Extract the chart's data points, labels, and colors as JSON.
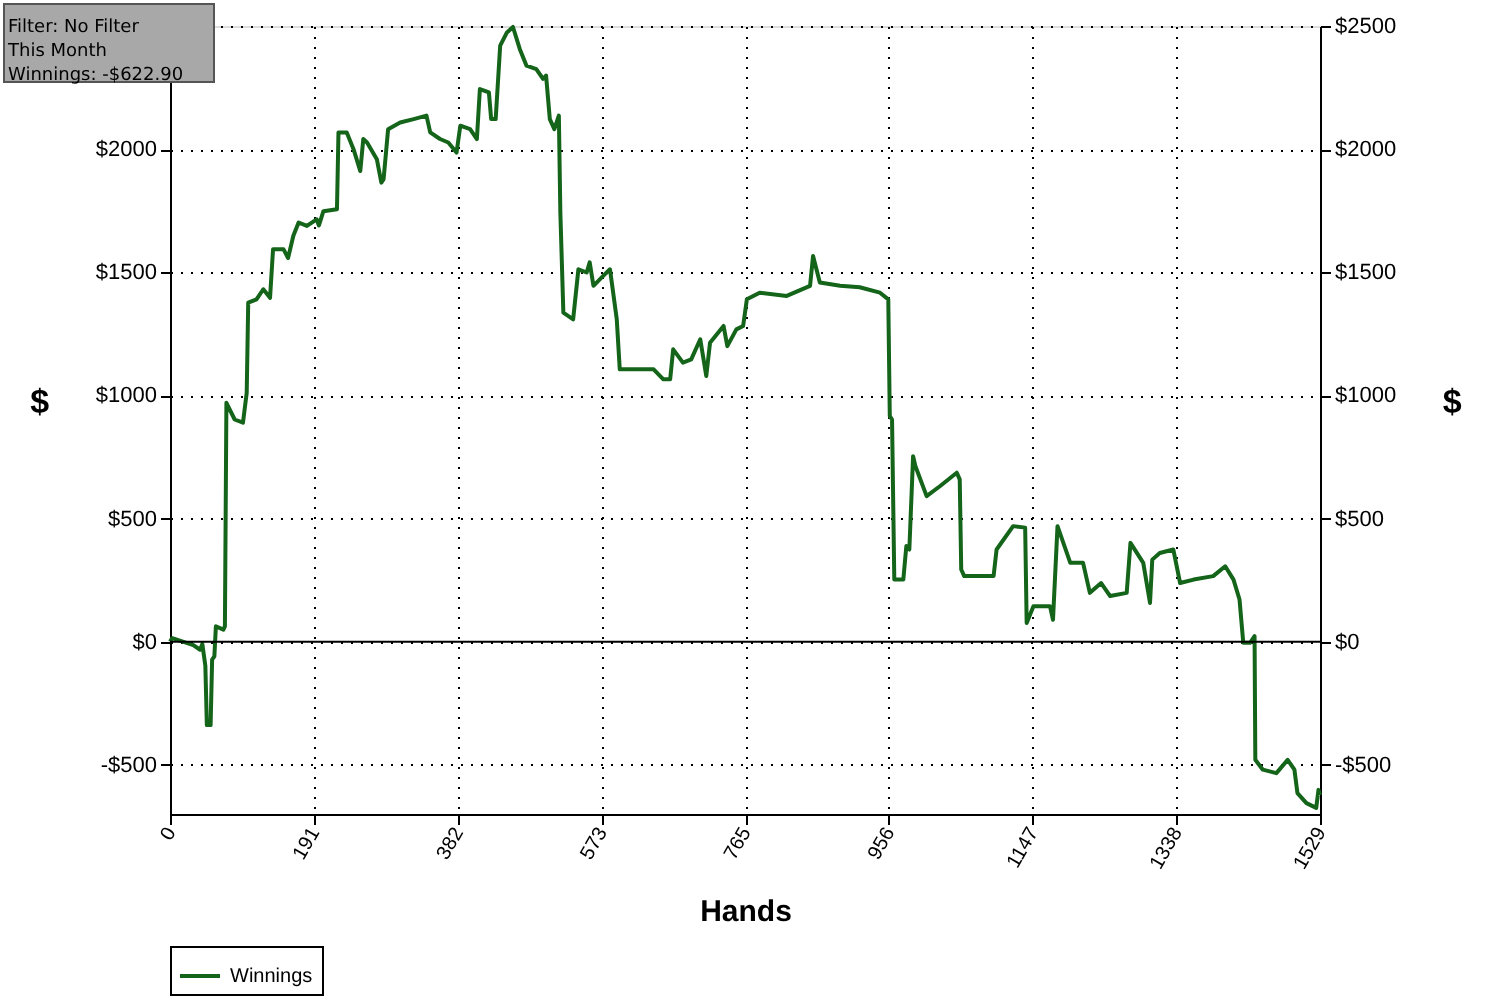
{
  "chart_data": {
    "type": "line",
    "xlabel": "Hands",
    "ylabel": "$",
    "y2label": "$",
    "annotations": [
      "Filter: No Filter",
      "This Month",
      "Winnings: -$622.90"
    ],
    "x": [
      0,
      3,
      31,
      40,
      43,
      47,
      49,
      54,
      56,
      59,
      61,
      71,
      73,
      75,
      86,
      97,
      102,
      104,
      115,
      124,
      133,
      137,
      151,
      157,
      164,
      171,
      182,
      195,
      198,
      204,
      222,
      224,
      235,
      244,
      253,
      257,
      262,
      275,
      281,
      284,
      290,
      306,
      324,
      341,
      346,
      359,
      370,
      381,
      386,
      399,
      408,
      412,
      424,
      427,
      433,
      439,
      448,
      456,
      465,
      474,
      487,
      496,
      500,
      505,
      511,
      517,
      519,
      523,
      536,
      543,
      554,
      558,
      563,
      576,
      585,
      594,
      598,
      616,
      643,
      656,
      665,
      669,
      682,
      693,
      705,
      713,
      718,
      736,
      741,
      753,
      762,
      767,
      784,
      820,
      851,
      855,
      864,
      891,
      917,
      944,
      955,
      957,
      960,
      963,
      975,
      979,
      983,
      988,
      991,
      1006,
      1024,
      1046,
      1050,
      1052,
      1056,
      1095,
      1099,
      1121,
      1137,
      1139,
      1148,
      1170,
      1174,
      1180,
      1197,
      1214,
      1223,
      1238,
      1250,
      1272,
      1277,
      1294,
      1303,
      1306,
      1316,
      1334,
      1343,
      1361,
      1387,
      1403,
      1414,
      1422,
      1427,
      1436,
      1442,
      1443,
      1453,
      1471,
      1486,
      1495,
      1499,
      1511,
      1524,
      1527,
      1529
    ],
    "series": [
      {
        "name": "Winnings",
        "color": "#14641a",
        "values": [
          0,
          14,
          -14,
          -33,
          -10,
          -98,
          -339,
          -339,
          -73,
          -60,
          62,
          49,
          62,
          970,
          902,
          889,
          1011,
          1377,
          1390,
          1431,
          1396,
          1593,
          1593,
          1558,
          1648,
          1702,
          1688,
          1715,
          1690,
          1748,
          1756,
          2068,
          2068,
          2000,
          1911,
          2041,
          2027,
          1959,
          1864,
          1878,
          2081,
          2108,
          2122,
          2136,
          2068,
          2041,
          2027,
          1986,
          2095,
          2081,
          2041,
          2244,
          2230,
          2122,
          2122,
          2420,
          2474,
          2496,
          2407,
          2339,
          2325,
          2285,
          2299,
          2122,
          2081,
          2136,
          1742,
          1336,
          1309,
          1512,
          1499,
          1540,
          1445,
          1485,
          1512,
          1309,
          1106,
          1106,
          1106,
          1065,
          1065,
          1187,
          1133,
          1146,
          1228,
          1079,
          1214,
          1282,
          1200,
          1268,
          1282,
          1390,
          1417,
          1404,
          1445,
          1566,
          1458,
          1445,
          1439,
          1417,
          1390,
          916,
          902,
          252,
          252,
          388,
          374,
          753,
          713,
          591,
          632,
          686,
          659,
          293,
          266,
          266,
          374,
          469,
          463,
          76,
          144,
          144,
          89,
          469,
          320,
          320,
          198,
          238,
          185,
          198,
          401,
          320,
          157,
          333,
          360,
          374,
          238,
          252,
          266,
          306,
          252,
          171,
          -5,
          -5,
          22,
          -480,
          -520,
          -534,
          -480,
          -520,
          -615,
          -656,
          -675,
          -602,
          -622.9
        ]
      }
    ],
    "xlim": [
      0,
      1529
    ],
    "xticks": [
      0,
      {
        "value": 191.125,
        "label": "191"
      },
      {
        "value": 382.25,
        "label": "382"
      },
      {
        "value": 573.375,
        "label": "573"
      },
      {
        "value": 764.5,
        "label": "765"
      },
      {
        "value": 955.625,
        "label": "956"
      },
      {
        "value": 1146.75,
        "label": "1147"
      },
      {
        "value": 1337.875,
        "label": "1338"
      },
      1529
    ],
    "ylim": [
      -700,
      2500
    ],
    "yticks": [
      {
        "value": -500,
        "label": "-$500"
      },
      {
        "value": 0,
        "label": "$0"
      },
      {
        "value": 500,
        "label": "$500"
      },
      {
        "value": 1000,
        "label": "$1000"
      },
      {
        "value": 1500,
        "label": "$1500"
      },
      {
        "value": 2000,
        "label": "$2000"
      },
      {
        "value": 2500,
        "label": null
      }
    ],
    "y2lim": [
      -700,
      2500
    ],
    "y2ticks": [
      {
        "value": -500,
        "label": "-$500"
      },
      {
        "value": 0,
        "label": "$0"
      },
      {
        "value": 500,
        "label": "$500"
      },
      {
        "value": 1000,
        "label": "$1000"
      },
      {
        "value": 1500,
        "label": "$1500"
      },
      {
        "value": 2000,
        "label": "$2000"
      },
      {
        "value": 2500,
        "label": "$2500"
      }
    ],
    "ref_lines": [
      {
        "axis": "y",
        "value": 0,
        "color": "#000000"
      }
    ],
    "grid": true,
    "legend": "bottom left",
    "line_style": "solid"
  }
}
